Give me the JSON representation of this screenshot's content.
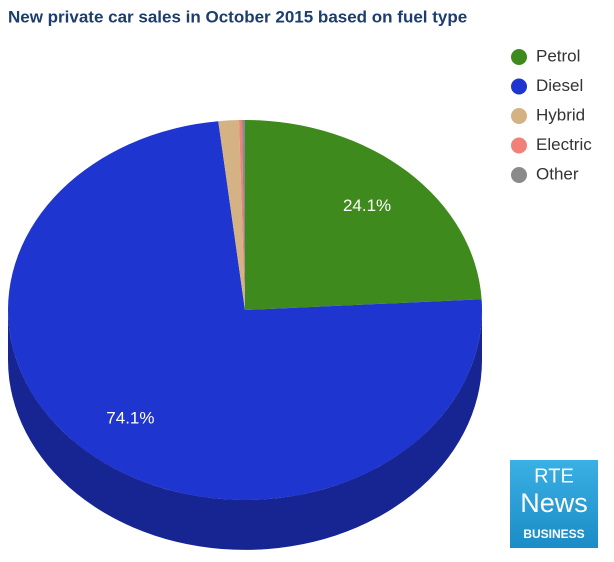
{
  "chart_data": {
    "type": "pie",
    "title": "New private car sales in October 2015 based on fuel type",
    "categories": [
      "Petrol",
      "Diesel",
      "Hybrid",
      "Electric",
      "Other"
    ],
    "values": [
      24.1,
      74.1,
      1.4,
      0.2,
      0.2
    ],
    "value_labels": [
      "24.1%",
      "74.1%",
      null,
      null,
      null
    ],
    "colors": [
      "#3f8a1c",
      "#1f35cf",
      "#d4b283",
      "#f08078",
      "#8a8a8a"
    ],
    "legend": "top-right"
  },
  "logo": {
    "brand": "RTE",
    "name": "News",
    "section": "BUSINESS"
  }
}
